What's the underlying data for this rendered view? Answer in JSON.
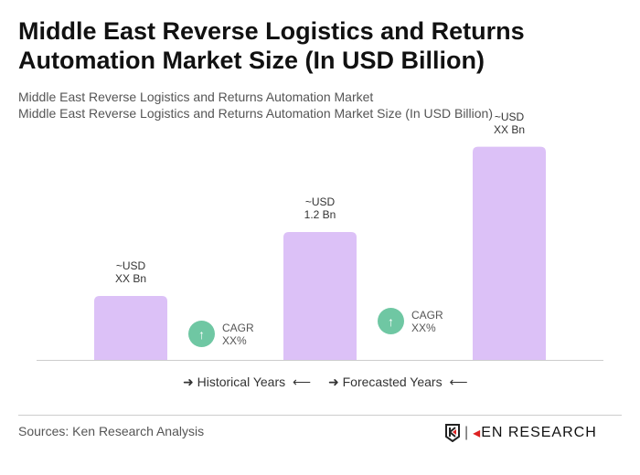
{
  "title": "Middle East Reverse Logistics and Returns Automation Market Size (In USD Billion)",
  "subtitle1": "Middle East Reverse Logistics and Returns Automation Market",
  "subtitle2": "Middle East Reverse Logistics and Returns Automation Market Size (In USD Billion)",
  "chart_data": {
    "type": "bar",
    "categories": [
      "",
      "",
      ""
    ],
    "values": [
      0.6,
      1.2,
      2.0
    ],
    "labels": [
      [
        "~USD",
        "XX Bn"
      ],
      [
        "~USD",
        "1.2 Bn"
      ],
      [
        "~USD",
        "XX Bn"
      ]
    ],
    "bar_color": "#dcc1f7",
    "cagr": [
      {
        "l1": "CAGR",
        "l2": "XX%"
      },
      {
        "l1": "CAGR",
        "l2": "XX%"
      }
    ],
    "cagr_color": "#6fc7a3",
    "legend": [
      "Historical Years",
      "Forecasted Years"
    ],
    "grid": false
  },
  "source": "Sources: Ken Research Analysis",
  "logo": "KEN RESEARCH"
}
